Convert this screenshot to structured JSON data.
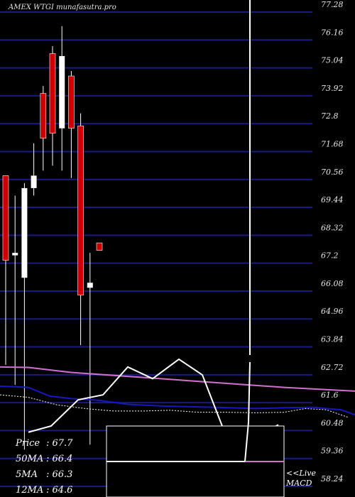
{
  "chart_data": {
    "type": "candlestick",
    "title": "AMEX WTGI munafasutra.pro",
    "y_ticks": [
      "77.28",
      "76.16",
      "75.04",
      "73.92",
      "72.8",
      "71.68",
      "70.56",
      "69.44",
      "68.32",
      "67.2",
      "66.08",
      "64.96",
      "63.84",
      "62.72",
      "61.6",
      "60.48",
      "59.36",
      "58.24"
    ],
    "ylim": [
      58.24,
      77.28
    ],
    "candles": [
      {
        "open": 70.4,
        "close": 67.0,
        "high": 70.4,
        "low": 62.8,
        "color": "red"
      },
      {
        "open": 67.3,
        "close": 67.2,
        "high": 69.6,
        "low": 62.0,
        "color": "white"
      },
      {
        "open": 66.3,
        "close": 69.9,
        "high": 70.1,
        "low": 59.4,
        "color": "white"
      },
      {
        "open": 69.9,
        "close": 70.4,
        "high": 71.7,
        "low": 69.6,
        "color": "white"
      },
      {
        "open": 73.7,
        "close": 71.9,
        "high": 74.0,
        "low": 70.6,
        "color": "red"
      },
      {
        "open": 75.3,
        "close": 72.1,
        "high": 75.6,
        "low": 70.8,
        "color": "red"
      },
      {
        "open": 72.3,
        "close": 75.2,
        "high": 76.4,
        "low": 70.6,
        "color": "white"
      },
      {
        "open": 74.4,
        "close": 72.3,
        "high": 74.6,
        "low": 70.3,
        "color": "red"
      },
      {
        "open": 72.4,
        "close": 65.6,
        "high": 72.9,
        "low": 63.6,
        "color": "red"
      },
      {
        "open": 66.1,
        "close": 65.9,
        "high": 67.3,
        "low": 59.6,
        "color": "white"
      },
      {
        "open": 67.7,
        "close": 67.4,
        "high": 67.7,
        "low": 67.4,
        "color": "red"
      }
    ],
    "ma_lines": [
      {
        "color": "#d070d0",
        "points": [
          [
            0,
            62.72
          ],
          [
            40,
            62.7
          ],
          [
            100,
            62.5
          ],
          [
            200,
            62.3
          ],
          [
            300,
            62.1
          ],
          [
            400,
            61.9
          ],
          [
            500,
            61.75
          ]
        ]
      },
      {
        "color": "#1818c0",
        "points": [
          [
            0,
            61.95
          ],
          [
            40,
            61.9
          ],
          [
            70,
            61.55
          ],
          [
            100,
            61.45
          ],
          [
            140,
            61.38
          ],
          [
            180,
            61.22
          ],
          [
            230,
            61.15
          ],
          [
            300,
            61.1
          ],
          [
            360,
            61.05
          ],
          [
            400,
            61.08
          ],
          [
            440,
            61.1
          ],
          [
            480,
            61.0
          ],
          [
            500,
            60.8
          ]
        ]
      },
      {
        "color": "#ffffff",
        "dashed": true,
        "points": [
          [
            0,
            61.6
          ],
          [
            40,
            61.5
          ],
          [
            80,
            61.2
          ],
          [
            120,
            61.05
          ],
          [
            160,
            60.95
          ],
          [
            200,
            60.95
          ],
          [
            240,
            60.98
          ],
          [
            280,
            60.9
          ],
          [
            320,
            60.9
          ],
          [
            360,
            60.88
          ],
          [
            400,
            60.9
          ],
          [
            430,
            61.05
          ],
          [
            460,
            61.0
          ],
          [
            490,
            60.7
          ]
        ]
      },
      {
        "color": "#ffffff",
        "points": [
          [
            40,
            60.1
          ],
          [
            72,
            60.35
          ],
          [
            110,
            61.4
          ],
          [
            145,
            61.6
          ],
          [
            180,
            62.72
          ],
          [
            215,
            62.25
          ],
          [
            252,
            63.03
          ],
          [
            285,
            62.4
          ],
          [
            315,
            60.2
          ]
        ]
      },
      {
        "color": "#ffffff",
        "points": [
          [
            380,
            60.2
          ],
          [
            392,
            60.4
          ]
        ]
      }
    ],
    "separator_line": {
      "color": "#ffffff",
      "x": 352
    },
    "macd_box": {
      "label": "<<Live MACD"
    },
    "stats": [
      {
        "label": "Price",
        "value": ": 67.7"
      },
      {
        "label": "50MA",
        "value": ": 66.4"
      },
      {
        "label": "5MA",
        "value": ": 66.3"
      },
      {
        "label": "12MA",
        "value": ": 64.6"
      }
    ]
  }
}
